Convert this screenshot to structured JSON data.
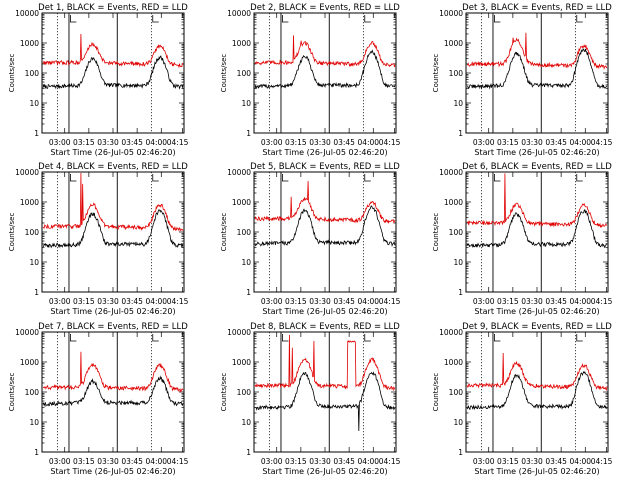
{
  "chart_data": [
    {
      "type": "line",
      "title": "Det 1, BLACK = Events, RED = LLD",
      "xlabel": "Start Time (26-Jul-05 02:46:20)",
      "ylabel": "Counts/sec",
      "yscale": "log",
      "ylim": [
        1,
        10000
      ],
      "ytick_labels": [
        "1",
        "10",
        "100",
        "1000",
        "10000"
      ],
      "xtick_labels": [
        "03:00",
        "03:15",
        "03:30",
        "03:45",
        "04:00",
        "04:15"
      ],
      "series": [
        {
          "color": "#000000",
          "base": 35,
          "peaks": [
            [
              0.355,
              300
            ],
            [
              0.835,
              330
            ]
          ]
        },
        {
          "color": "#e00000",
          "base": 200,
          "peaks": [
            [
              0.355,
              900
            ],
            [
              0.835,
              800
            ]
          ],
          "spikes": [
            [
              0.27,
              2000
            ]
          ]
        }
      ]
    },
    {
      "type": "line",
      "title": "Det 2, BLACK = Events, RED = LLD",
      "xlabel": "Start Time (26-Jul-05 02:46:20)",
      "ylabel": "Counts/sec",
      "yscale": "log",
      "ylim": [
        1,
        10000
      ],
      "ytick_labels": [
        "1",
        "10",
        "100",
        "1000",
        "10000"
      ],
      "xtick_labels": [
        "03:00",
        "03:15",
        "03:30",
        "03:45",
        "04:00",
        "04:15"
      ],
      "series": [
        {
          "color": "#000000",
          "base": 35,
          "peaks": [
            [
              0.355,
              350
            ],
            [
              0.835,
              500
            ]
          ]
        },
        {
          "color": "#e00000",
          "base": 200,
          "peaks": [
            [
              0.355,
              1000
            ],
            [
              0.835,
              1000
            ]
          ],
          "spikes": [
            [
              0.275,
              1800
            ],
            [
              0.33,
              1200
            ]
          ]
        }
      ]
    },
    {
      "type": "line",
      "title": "Det 3, BLACK = Events, RED = LLD",
      "xlabel": "Start Time (26-Jul-05 02:46:20)",
      "ylabel": "Counts/sec",
      "yscale": "log",
      "ylim": [
        1,
        10000
      ],
      "ytick_labels": [
        "1",
        "10",
        "100",
        "1000",
        "10000"
      ],
      "xtick_labels": [
        "03:00",
        "03:15",
        "03:30",
        "03:45",
        "04:00",
        "04:15"
      ],
      "series": [
        {
          "color": "#000000",
          "base": 35,
          "peaks": [
            [
              0.355,
              450
            ],
            [
              0.835,
              600
            ]
          ]
        },
        {
          "color": "#e00000",
          "base": 180,
          "peaks": [
            [
              0.355,
              1200
            ],
            [
              0.835,
              850
            ]
          ],
          "spikes": [
            [
              0.33,
              1500
            ],
            [
              0.42,
              2200
            ]
          ]
        }
      ]
    },
    {
      "type": "line",
      "title": "Det 4, BLACK = Events, RED = LLD",
      "xlabel": "Start Time (26-Jul-05 02:46:20)",
      "ylabel": "Counts/sec",
      "yscale": "log",
      "ylim": [
        1,
        10000
      ],
      "ytick_labels": [
        "1",
        "10",
        "100",
        "1000",
        "10000"
      ],
      "xtick_labels": [
        "03:00",
        "03:15",
        "03:30",
        "03:45",
        "04:00",
        "04:15"
      ],
      "series": [
        {
          "color": "#000000",
          "base": 35,
          "peaks": [
            [
              0.355,
              400
            ],
            [
              0.835,
              500
            ]
          ]
        },
        {
          "color": "#e00000",
          "base": 140,
          "peaks": [
            [
              0.355,
              800
            ],
            [
              0.835,
              800
            ]
          ],
          "spikes": [
            [
              0.27,
              11000
            ],
            [
              0.285,
              4000
            ]
          ]
        }
      ]
    },
    {
      "type": "line",
      "title": "Det 5, BLACK = Events, RED = LLD",
      "xlabel": "Start Time (26-Jul-05 02:46:20)",
      "ylabel": "Counts/sec",
      "yscale": "log",
      "ylim": [
        1,
        10000
      ],
      "ytick_labels": [
        "1",
        "10",
        "100",
        "1000",
        "10000"
      ],
      "xtick_labels": [
        "03:00",
        "03:15",
        "03:30",
        "03:45",
        "04:00",
        "04:15"
      ],
      "series": [
        {
          "color": "#000000",
          "base": 40,
          "peaks": [
            [
              0.355,
              500
            ],
            [
              0.835,
              650
            ]
          ]
        },
        {
          "color": "#e00000",
          "base": 250,
          "peaks": [
            [
              0.355,
              1300
            ],
            [
              0.835,
              1000
            ]
          ],
          "spikes": [
            [
              0.26,
              1500
            ],
            [
              0.38,
              5000
            ]
          ]
        }
      ]
    },
    {
      "type": "line",
      "title": "Det 6, BLACK = Events, RED = LLD",
      "xlabel": "Start Time (26-Jul-05 02:46:20)",
      "ylabel": "Counts/sec",
      "yscale": "log",
      "ylim": [
        1,
        10000
      ],
      "ytick_labels": [
        "1",
        "10",
        "100",
        "1000",
        "10000"
      ],
      "xtick_labels": [
        "03:00",
        "03:15",
        "03:30",
        "03:45",
        "04:00",
        "04:15"
      ],
      "series": [
        {
          "color": "#000000",
          "base": 35,
          "peaks": [
            [
              0.355,
              400
            ],
            [
              0.835,
              500
            ]
          ]
        },
        {
          "color": "#e00000",
          "base": 180,
          "peaks": [
            [
              0.355,
              800
            ],
            [
              0.835,
              800
            ]
          ],
          "spikes": [
            [
              0.27,
              9000
            ]
          ]
        }
      ]
    },
    {
      "type": "line",
      "title": "Det 7, BLACK = Events, RED = LLD",
      "xlabel": "Start Time (26-Jul-05 02:46:20)",
      "ylabel": "Counts/sec",
      "yscale": "log",
      "ylim": [
        1,
        10000
      ],
      "ytick_labels": [
        "1",
        "10",
        "100",
        "1000",
        "10000"
      ],
      "xtick_labels": [
        "03:00",
        "03:15",
        "03:30",
        "03:45",
        "04:00",
        "04:15"
      ],
      "series": [
        {
          "color": "#000000",
          "base": 40,
          "peaks": [
            [
              0.355,
              220
            ],
            [
              0.835,
              280
            ]
          ]
        },
        {
          "color": "#e00000",
          "base": 130,
          "peaks": [
            [
              0.355,
              800
            ],
            [
              0.835,
              800
            ]
          ],
          "spikes": [
            [
              0.27,
              2200
            ]
          ]
        }
      ]
    },
    {
      "type": "line",
      "title": "Det 8, BLACK = Events, RED = LLD",
      "xlabel": "Start Time (26-Jul-05 02:46:20)",
      "ylabel": "Counts/sec",
      "yscale": "log",
      "ylim": [
        1,
        10000
      ],
      "ytick_labels": [
        "1",
        "10",
        "100",
        "1000",
        "10000"
      ],
      "xtick_labels": [
        "03:00",
        "03:15",
        "03:30",
        "03:45",
        "04:00",
        "04:15"
      ],
      "series": [
        {
          "color": "#000000",
          "base": 30,
          "peaks": [
            [
              0.355,
              400
            ],
            [
              0.835,
              450
            ]
          ],
          "dips": [
            [
              0.74,
              5
            ]
          ]
        },
        {
          "color": "#e00000",
          "base": 150,
          "peaks": [
            [
              0.355,
              1200
            ],
            [
              0.835,
              1200
            ]
          ],
          "spikes": [
            [
              0.245,
              8000
            ],
            [
              0.265,
              3000
            ],
            [
              0.42,
              5000
            ]
          ],
          "plateaus": [
            [
              0.66,
              0.72,
              5000
            ]
          ]
        }
      ]
    },
    {
      "type": "line",
      "title": "Det 9, BLACK = Events, RED = LLD",
      "xlabel": "Start Time (26-Jul-05 02:46:20)",
      "ylabel": "Counts/sec",
      "yscale": "log",
      "ylim": [
        1,
        10000
      ],
      "ytick_labels": [
        "1",
        "10",
        "100",
        "1000",
        "10000"
      ],
      "xtick_labels": [
        "03:00",
        "03:15",
        "03:30",
        "03:45",
        "04:00",
        "04:15"
      ],
      "series": [
        {
          "color": "#000000",
          "base": 30,
          "peaks": [
            [
              0.355,
              350
            ],
            [
              0.835,
              450
            ]
          ]
        },
        {
          "color": "#e00000",
          "base": 150,
          "peaks": [
            [
              0.355,
              900
            ],
            [
              0.835,
              800
            ]
          ],
          "spikes": [
            [
              0.26,
              2000
            ]
          ]
        }
      ]
    }
  ]
}
